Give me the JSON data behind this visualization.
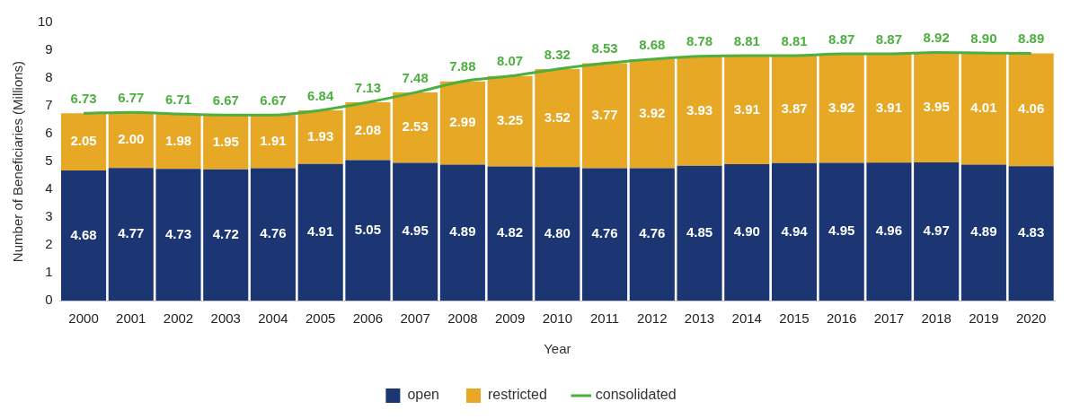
{
  "chart_data": {
    "type": "bar",
    "stacked": true,
    "xlabel": "Year",
    "ylabel": "Number of Beneficiaries (Millions)",
    "categories": [
      "2000",
      "2001",
      "2002",
      "2003",
      "2004",
      "2005",
      "2006",
      "2007",
      "2008",
      "2009",
      "2010",
      "2011",
      "2012",
      "2013",
      "2014",
      "2015",
      "2016",
      "2017",
      "2018",
      "2019",
      "2020"
    ],
    "series": [
      {
        "name": "open",
        "color": "#1b3673",
        "values": [
          4.68,
          4.77,
          4.73,
          4.72,
          4.76,
          4.91,
          5.05,
          4.95,
          4.89,
          4.82,
          4.8,
          4.76,
          4.76,
          4.85,
          4.9,
          4.94,
          4.95,
          4.96,
          4.97,
          4.89,
          4.83
        ],
        "value_labels": [
          "4.68",
          "4.77",
          "4.73",
          "4.72",
          "4.76",
          "4.91",
          "5.05",
          "4.95",
          "4.89",
          "4.82",
          "4.80",
          "4.76",
          "4.76",
          "4.85",
          "4.90",
          "4.94",
          "4.95",
          "4.96",
          "4.97",
          "4.89",
          "4.83"
        ]
      },
      {
        "name": "restricted",
        "color": "#e6a825",
        "values": [
          2.05,
          2.0,
          1.98,
          1.95,
          1.91,
          1.93,
          2.08,
          2.53,
          2.99,
          3.25,
          3.52,
          3.77,
          3.92,
          3.93,
          3.91,
          3.87,
          3.92,
          3.91,
          3.95,
          4.01,
          4.06
        ],
        "value_labels": [
          "2.05",
          "2.00",
          "1.98",
          "1.95",
          "1.91",
          "1.93",
          "2.08",
          "2.53",
          "2.99",
          "3.25",
          "3.52",
          "3.77",
          "3.92",
          "3.93",
          "3.91",
          "3.87",
          "3.92",
          "3.91",
          "3.95",
          "4.01",
          "4.06"
        ]
      },
      {
        "name": "consolidated",
        "type": "line",
        "color": "#4caf3f",
        "values": [
          6.73,
          6.77,
          6.71,
          6.67,
          6.67,
          6.84,
          7.13,
          7.48,
          7.88,
          8.07,
          8.32,
          8.53,
          8.68,
          8.78,
          8.81,
          8.81,
          8.87,
          8.87,
          8.92,
          8.9,
          8.89
        ],
        "value_labels": [
          "6.73",
          "6.77",
          "6.71",
          "6.67",
          "6.67",
          "6.84",
          "7.13",
          "7.48",
          "7.88",
          "8.07",
          "8.32",
          "8.53",
          "8.68",
          "8.78",
          "8.81",
          "8.81",
          "8.87",
          "8.87",
          "8.92",
          "8.90",
          "8.89"
        ]
      }
    ],
    "ylim": [
      0,
      10
    ],
    "yticks": [
      0,
      1,
      2,
      3,
      4,
      5,
      6,
      7,
      8,
      9,
      10
    ],
    "grid": false,
    "legend": "bottom",
    "marker": "none"
  }
}
